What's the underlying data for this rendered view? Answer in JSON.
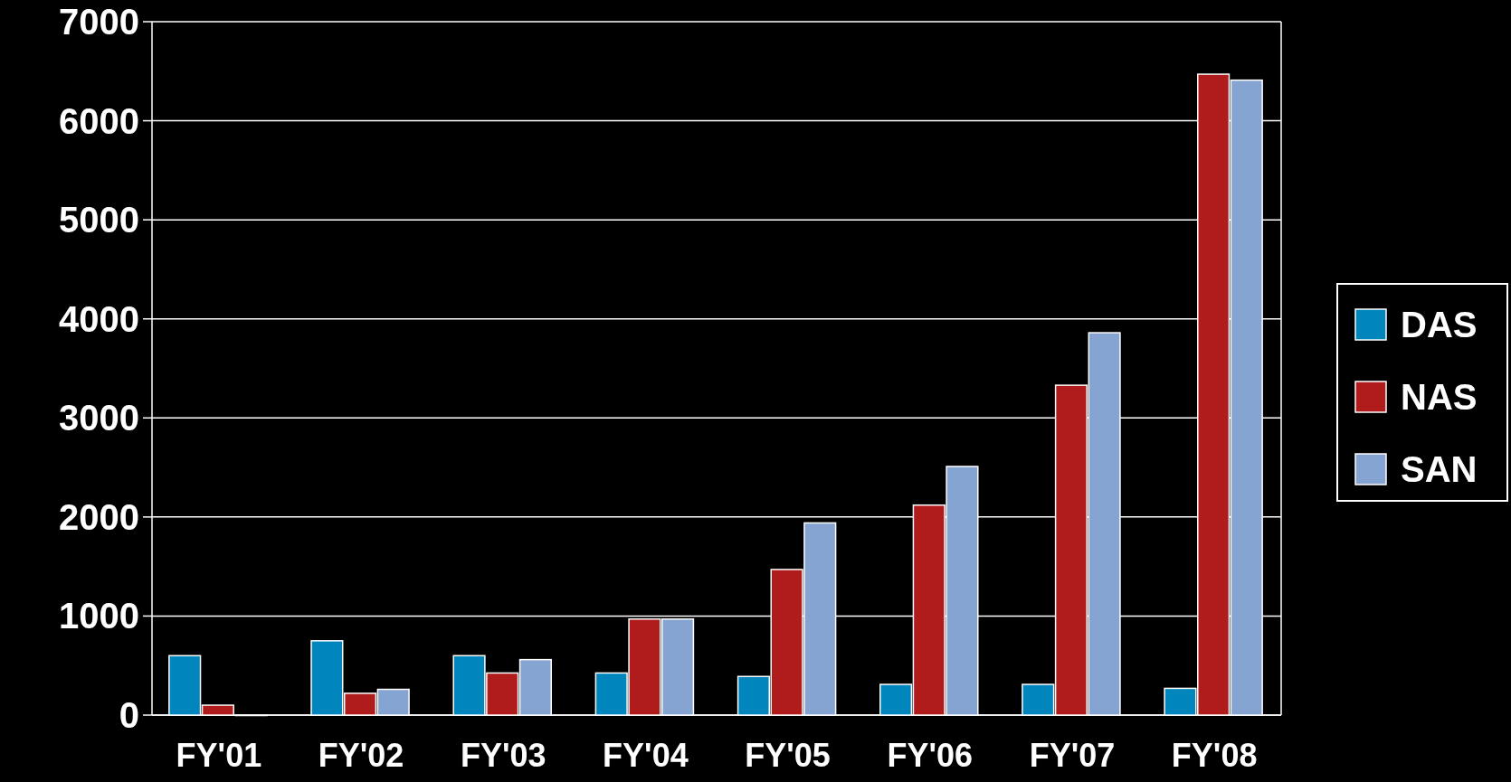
{
  "chart_data": {
    "type": "bar",
    "categories": [
      "FY'01",
      "FY'02",
      "FY'03",
      "FY'04",
      "FY'05",
      "FY'06",
      "FY'07",
      "FY'08"
    ],
    "series": [
      {
        "name": "DAS",
        "color": "#0085bd",
        "values": [
          600,
          750,
          600,
          425,
          390,
          310,
          310,
          270
        ]
      },
      {
        "name": "NAS",
        "color": "#b01c1c",
        "values": [
          100,
          220,
          425,
          970,
          1470,
          2120,
          3330,
          6470
        ]
      },
      {
        "name": "SAN",
        "color": "#86a4d2",
        "values": [
          0,
          260,
          560,
          970,
          1940,
          2510,
          3860,
          6410
        ]
      }
    ],
    "ylim": [
      0,
      7000
    ],
    "yticks": [
      0,
      1000,
      2000,
      3000,
      4000,
      5000,
      6000,
      7000
    ],
    "grid": "y",
    "legend": "right"
  }
}
